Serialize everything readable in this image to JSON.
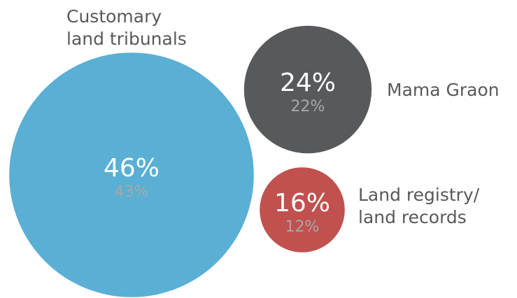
{
  "chart_data": {
    "type": "bubble",
    "categories": [
      [
        "Customary",
        "land tribunals"
      ],
      [
        "Mama Graon"
      ],
      [
        "Land registry/",
        "land records"
      ]
    ],
    "colors": [
      "#5aafd4",
      "#58595b",
      "#c1514f"
    ],
    "series": [
      {
        "values": [
          46,
          24,
          16
        ],
        "value_labels": [
          "46%",
          "24%",
          "16%"
        ],
        "color": "#ffffff"
      },
      {
        "values": [
          43,
          22,
          12
        ],
        "value_labels": [
          "43%",
          "22%",
          "12%"
        ],
        "color": "#a8a8a8"
      }
    ]
  }
}
